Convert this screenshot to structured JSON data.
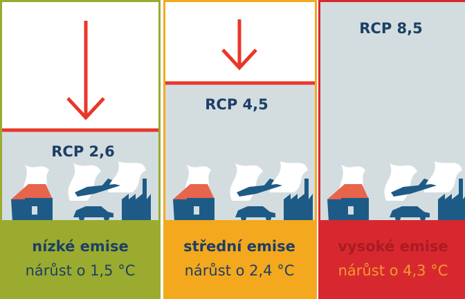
{
  "panels": [
    {
      "label": "RCP 2,6",
      "emission": "nízké emise",
      "warming": "nárůst o 1,5 °C"
    },
    {
      "label": "RCP 4,5",
      "emission": "střední emise",
      "warming": "nárůst o 2,4 °C"
    },
    {
      "label": "RCP 8,5",
      "emission": "vysoké emise",
      "warming": "nárůst o 4,3 °C"
    }
  ]
}
